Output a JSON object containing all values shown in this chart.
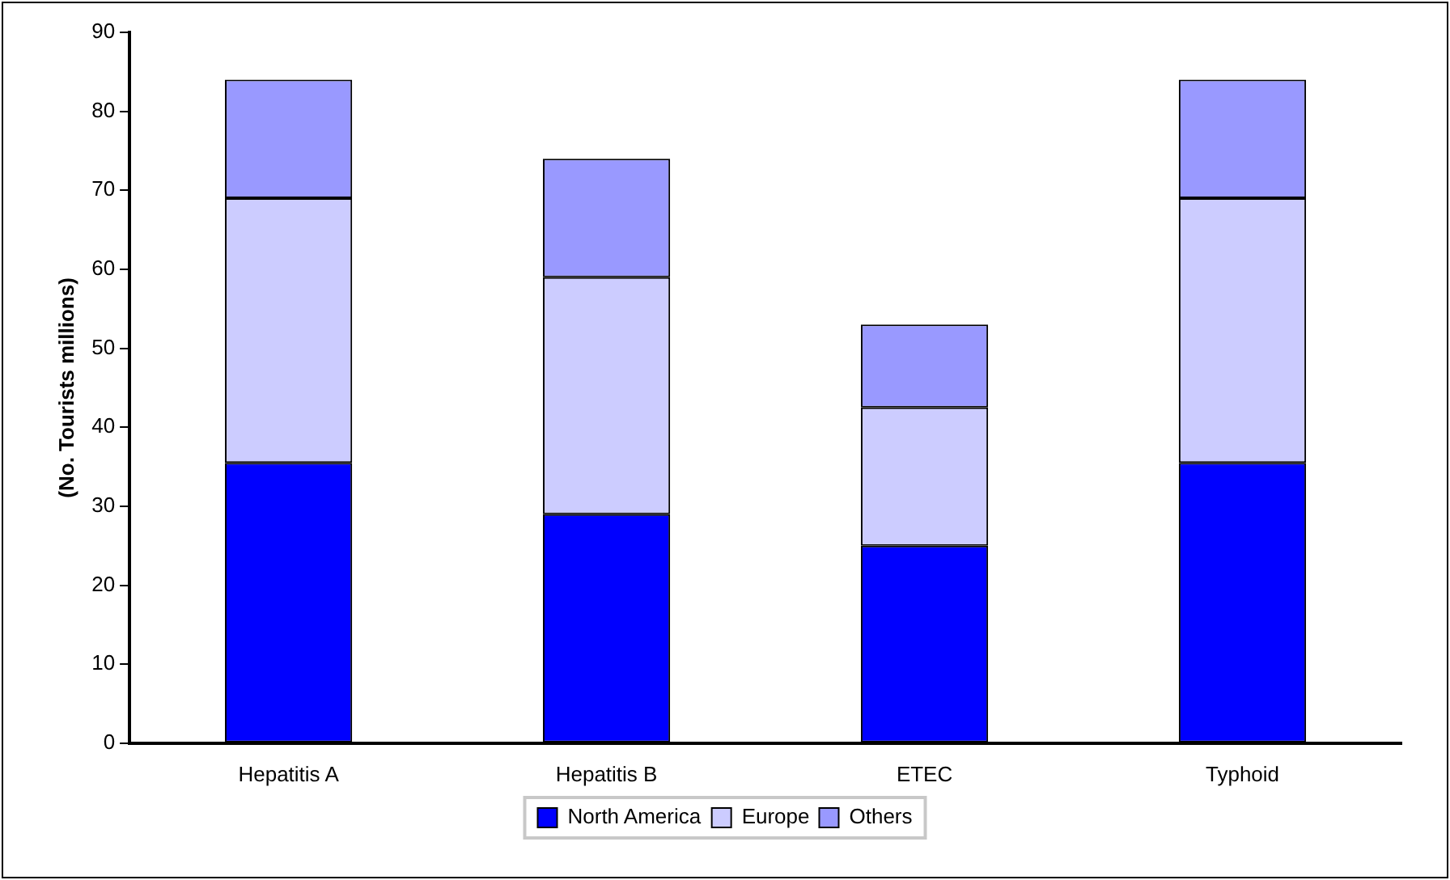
{
  "chart_data": {
    "type": "bar",
    "stacked": true,
    "ylabel": "(No. Tourists millions)",
    "categories": [
      "Hepatitis A",
      "Hepatitis B",
      "ETEC",
      "Typhoid"
    ],
    "series": [
      {
        "name": "North America",
        "color": "#0000ff",
        "values": [
          35.5,
          29,
          25,
          35.5
        ]
      },
      {
        "name": "Europe",
        "color": "#ccccff",
        "values": [
          33.5,
          30,
          17.5,
          33.5
        ]
      },
      {
        "name": "Others",
        "color": "#9999ff",
        "values": [
          15,
          15,
          10.5,
          15
        ]
      }
    ],
    "ylim": [
      0,
      90
    ],
    "yticks": [
      0,
      10,
      20,
      30,
      40,
      50,
      60,
      70,
      80,
      90
    ],
    "grid": false,
    "legend": "bottom"
  }
}
